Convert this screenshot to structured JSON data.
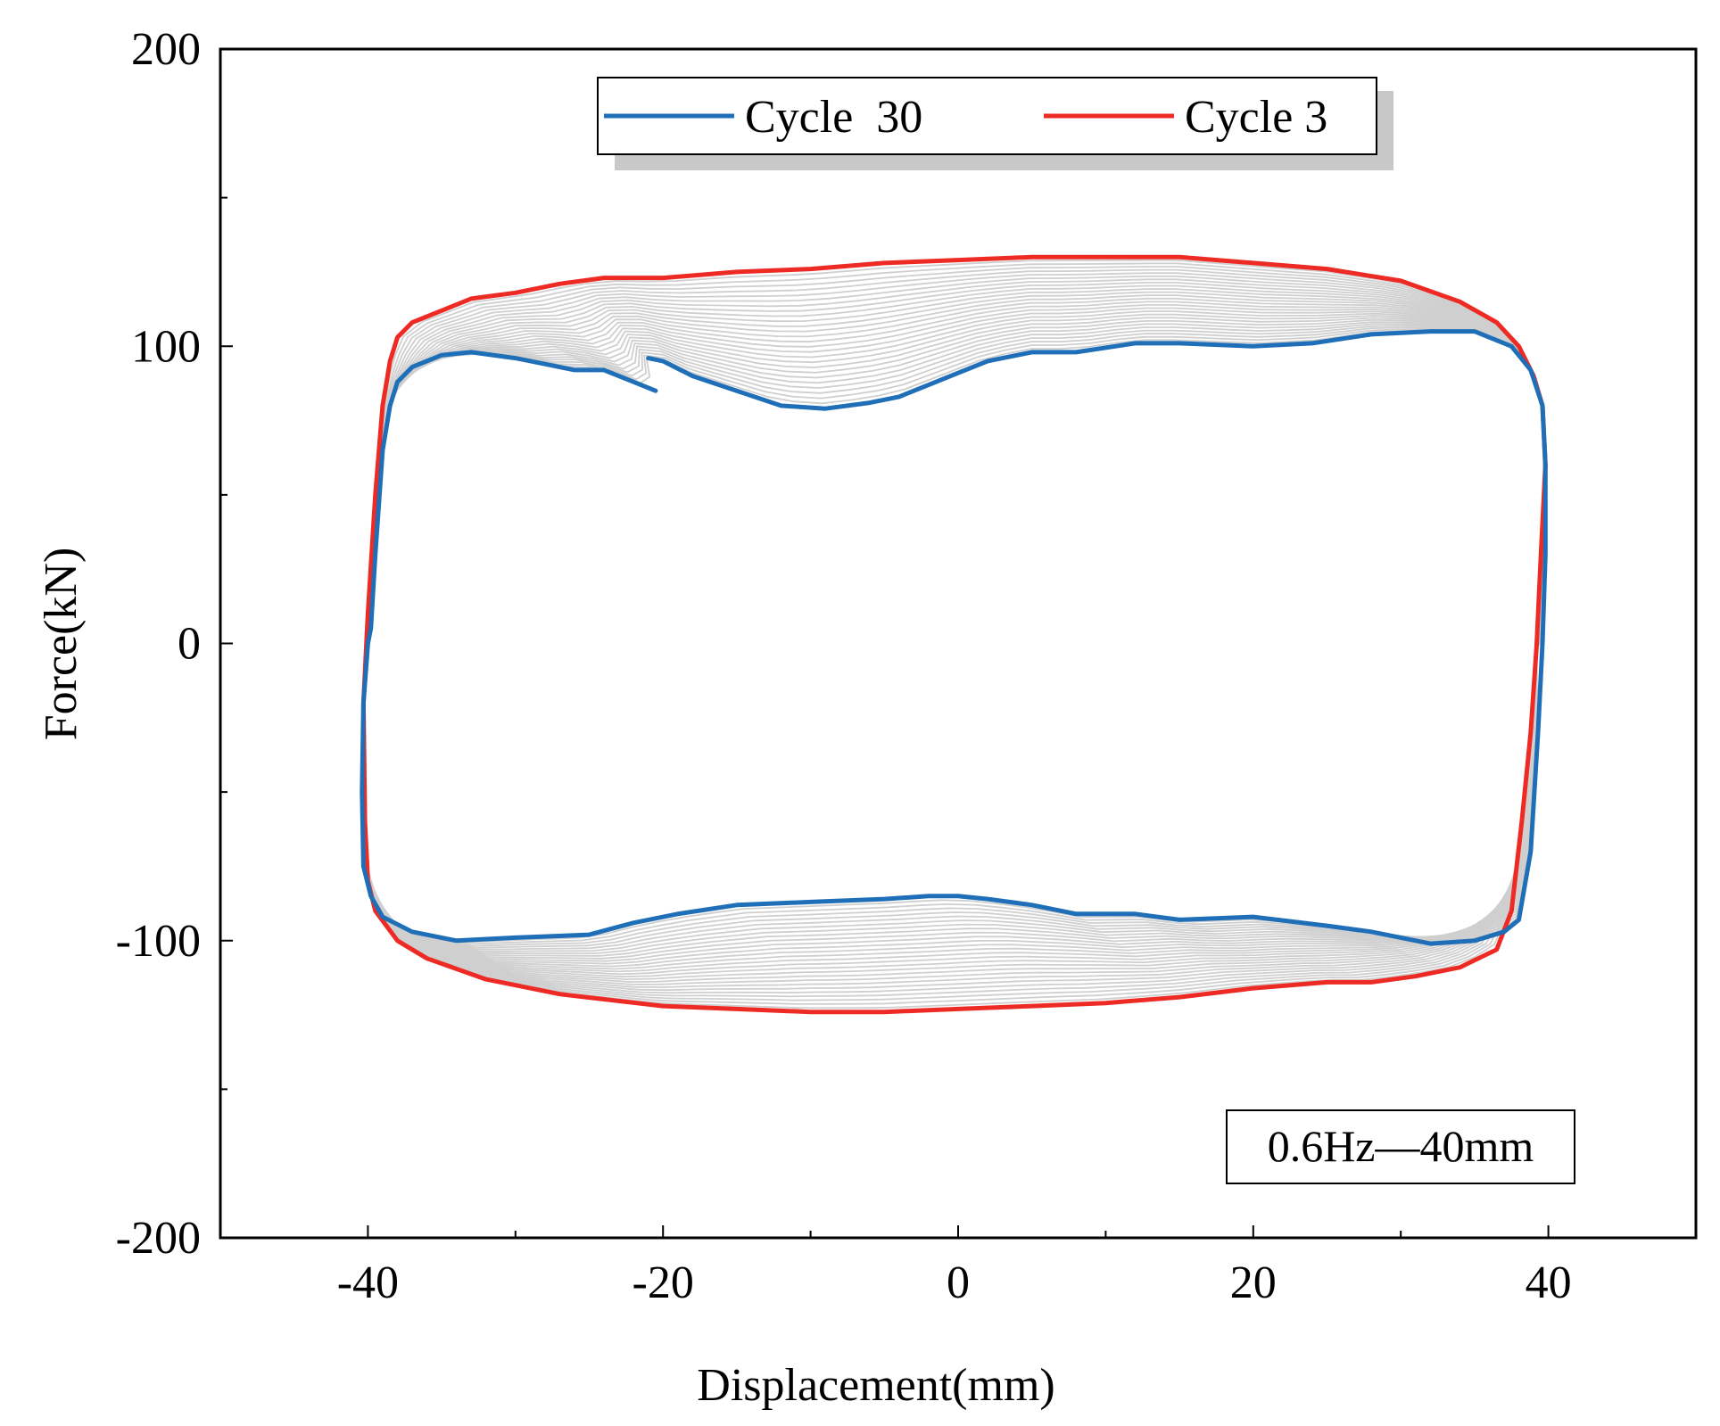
{
  "chart_data": {
    "type": "line",
    "title": "",
    "xlabel": "Displacement(mm)",
    "ylabel": "Force(kN)",
    "xlim": [
      -50,
      50
    ],
    "ylim": [
      -200,
      200
    ],
    "x_ticks": [
      -40,
      -20,
      0,
      20,
      40
    ],
    "y_ticks": [
      -200,
      -100,
      0,
      100,
      200
    ],
    "x_tick_labels": [
      "-40",
      "-20",
      "0",
      "20",
      "40"
    ],
    "y_tick_labels": [
      "-200",
      "-100",
      "0",
      "100",
      "200"
    ],
    "grid": false,
    "annotation": "0.6Hz—40mm",
    "legend": {
      "position": "top",
      "entries": [
        {
          "name": "Cycle  30",
          "color": "#1f6fb8"
        },
        {
          "name": "Cycle 3",
          "color": "#ee2a24"
        }
      ]
    },
    "intermediate_cycles": {
      "color": "#cfcfcf",
      "count": 26,
      "description_range": "between Cycle 3 and Cycle 30"
    },
    "series": [
      {
        "name": "Cycle 3",
        "color": "#ee2a24",
        "points": [
          [
            39.2,
            -1
          ],
          [
            39.5,
            30
          ],
          [
            39.8,
            60
          ],
          [
            39.6,
            80
          ],
          [
            39.0,
            90
          ],
          [
            38.0,
            100
          ],
          [
            36.5,
            108
          ],
          [
            34.0,
            115
          ],
          [
            30.0,
            122
          ],
          [
            25.0,
            126
          ],
          [
            20.0,
            128
          ],
          [
            15.0,
            130
          ],
          [
            10.0,
            130
          ],
          [
            5.0,
            130
          ],
          [
            0.0,
            129
          ],
          [
            -5.0,
            128
          ],
          [
            -10.0,
            126
          ],
          [
            -15.0,
            125
          ],
          [
            -20.0,
            123
          ],
          [
            -24.0,
            123
          ],
          [
            -27.0,
            121
          ],
          [
            -30.0,
            118
          ],
          [
            -33.0,
            116
          ],
          [
            -35.0,
            112
          ],
          [
            -37.0,
            108
          ],
          [
            -38.0,
            103
          ],
          [
            -38.5,
            95
          ],
          [
            -39.0,
            80
          ],
          [
            -39.5,
            50
          ],
          [
            -40.0,
            10
          ],
          [
            -40.3,
            -20
          ],
          [
            -40.2,
            -60
          ],
          [
            -40.0,
            -80
          ],
          [
            -39.5,
            -90
          ],
          [
            -38.0,
            -100
          ],
          [
            -36.0,
            -106
          ],
          [
            -32.0,
            -113
          ],
          [
            -27.0,
            -118
          ],
          [
            -20.0,
            -122
          ],
          [
            -15.0,
            -123
          ],
          [
            -10.0,
            -124
          ],
          [
            -5.0,
            -124
          ],
          [
            0.0,
            -123
          ],
          [
            5.0,
            -122
          ],
          [
            10.0,
            -121
          ],
          [
            15.0,
            -119
          ],
          [
            20.0,
            -116
          ],
          [
            25.0,
            -114
          ],
          [
            28.0,
            -114
          ],
          [
            31.0,
            -112
          ],
          [
            34.0,
            -109
          ],
          [
            36.5,
            -103
          ],
          [
            37.5,
            -90
          ],
          [
            38.2,
            -60
          ],
          [
            38.8,
            -30
          ],
          [
            39.2,
            -1
          ]
        ]
      },
      {
        "name": "Cycle  30",
        "color": "#1f6fb8",
        "points": [
          [
            -20.5,
            85
          ],
          [
            -22.0,
            88
          ],
          [
            -24.0,
            92
          ],
          [
            -26.0,
            92
          ],
          [
            -28.0,
            94
          ],
          [
            -30.0,
            96
          ],
          [
            -33.0,
            98
          ],
          [
            -35.0,
            97
          ],
          [
            -37.0,
            93
          ],
          [
            -38.0,
            88
          ],
          [
            -38.5,
            80
          ],
          [
            -39.0,
            65
          ],
          [
            -39.5,
            30
          ],
          [
            -39.8,
            5
          ],
          [
            -40.0,
            0
          ],
          [
            -40.3,
            -20
          ],
          [
            -40.4,
            -50
          ],
          [
            -40.3,
            -75
          ],
          [
            -39.8,
            -85
          ],
          [
            -39.0,
            -92
          ],
          [
            -37.0,
            -97
          ],
          [
            -34.0,
            -100
          ],
          [
            -30.0,
            -99
          ],
          [
            -25.0,
            -98
          ],
          [
            -22.0,
            -94
          ],
          [
            -19.0,
            -91
          ],
          [
            -15.0,
            -88
          ],
          [
            -10.0,
            -87
          ],
          [
            -5.0,
            -86
          ],
          [
            -2.0,
            -85
          ],
          [
            0.0,
            -85
          ],
          [
            2.0,
            -86
          ],
          [
            5.0,
            -88
          ],
          [
            8.0,
            -91
          ],
          [
            12.0,
            -91
          ],
          [
            15.0,
            -93
          ],
          [
            20.0,
            -92
          ],
          [
            25.0,
            -95
          ],
          [
            28.0,
            -97
          ],
          [
            32.0,
            -101
          ],
          [
            35.0,
            -100
          ],
          [
            37.0,
            -97
          ],
          [
            38.0,
            -93
          ],
          [
            38.8,
            -70
          ],
          [
            39.3,
            -30
          ],
          [
            39.6,
            0
          ],
          [
            39.8,
            30
          ],
          [
            39.8,
            60
          ],
          [
            39.6,
            80
          ],
          [
            38.8,
            92
          ],
          [
            37.5,
            100
          ],
          [
            35.0,
            105
          ],
          [
            32.0,
            105
          ],
          [
            28.0,
            104
          ],
          [
            24.0,
            101
          ],
          [
            20.0,
            100
          ],
          [
            15.0,
            101
          ],
          [
            12.0,
            101
          ],
          [
            8.0,
            98
          ],
          [
            5.0,
            98
          ],
          [
            2.0,
            95
          ],
          [
            0.0,
            91
          ],
          [
            -2.0,
            87
          ],
          [
            -4.0,
            83
          ],
          [
            -6.0,
            81
          ],
          [
            -9.0,
            79
          ],
          [
            -12.0,
            80
          ],
          [
            -15.0,
            85
          ],
          [
            -18.0,
            90
          ],
          [
            -20.0,
            95
          ],
          [
            -21.0,
            96
          ]
        ]
      }
    ]
  }
}
